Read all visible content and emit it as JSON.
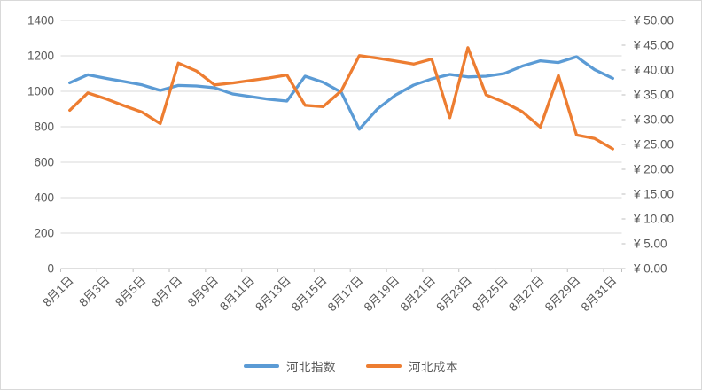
{
  "chart_data": {
    "type": "line",
    "title": "",
    "categories": [
      "8月1日",
      "8月2日",
      "8月3日",
      "8月4日",
      "8月5日",
      "8月6日",
      "8月7日",
      "8月8日",
      "8月9日",
      "8月10日",
      "8月11日",
      "8月12日",
      "8月13日",
      "8月14日",
      "8月15日",
      "8月16日",
      "8月17日",
      "8月18日",
      "8月19日",
      "8月20日",
      "8月21日",
      "8月22日",
      "8月23日",
      "8月24日",
      "8月25日",
      "8月26日",
      "8月27日",
      "8月28日",
      "8月29日",
      "8月30日",
      "8月31日"
    ],
    "x_label_interval": 2,
    "x_labels_shown": [
      "8月1日",
      "8月3日",
      "8月5日",
      "8月7日",
      "8月9日",
      "8月11日",
      "8月13日",
      "8月15日",
      "8月17日",
      "8月19日",
      "8月21日",
      "8月23日",
      "8月25日",
      "8月27日",
      "8月29日",
      "8月31日"
    ],
    "series": [
      {
        "name": "河北指数",
        "axis": "left",
        "color": "#5B9BD5",
        "values": [
          1048,
          1093,
          1073,
          1055,
          1036,
          1005,
          1033,
          1030,
          1020,
          985,
          970,
          955,
          945,
          1085,
          1051,
          995,
          786,
          900,
          979,
          1035,
          1070,
          1095,
          1081,
          1085,
          1100,
          1142,
          1172,
          1162,
          1195,
          1122,
          1073
        ]
      },
      {
        "name": "河北成本",
        "axis": "right",
        "color": "#ED7D31",
        "values": [
          31.9,
          35.4,
          34.2,
          32.8,
          31.5,
          29.2,
          41.4,
          39.8,
          37.0,
          37.4,
          37.9,
          38.4,
          39.0,
          32.9,
          32.6,
          35.8,
          42.9,
          42.4,
          41.8,
          41.2,
          42.2,
          30.4,
          44.5,
          35.0,
          33.5,
          31.6,
          28.5,
          38.9,
          26.9,
          26.2,
          24.1
        ]
      }
    ],
    "left_axis": {
      "min": 0,
      "max": 1400,
      "step": 200,
      "tick_labels": [
        "0",
        "200",
        "400",
        "600",
        "800",
        "1000",
        "1200",
        "1400"
      ]
    },
    "right_axis": {
      "min": 0,
      "max": 50,
      "step": 5,
      "tick_labels": [
        "¥ 0.00",
        "¥ 5.00",
        "¥ 10.00",
        "¥ 15.00",
        "¥ 20.00",
        "¥ 25.00",
        "¥ 30.00",
        "¥ 35.00",
        "¥ 40.00",
        "¥ 45.00",
        "¥ 50.00"
      ]
    },
    "grid": true,
    "legend_position": "bottom",
    "style": {
      "background": "#FFFFFF",
      "border_color": "#D9D9D9",
      "gridline_color": "#D9D9D9",
      "axis_line_color": "#BFBFBF",
      "label_color": "#595959",
      "line_width": 3.3
    }
  }
}
